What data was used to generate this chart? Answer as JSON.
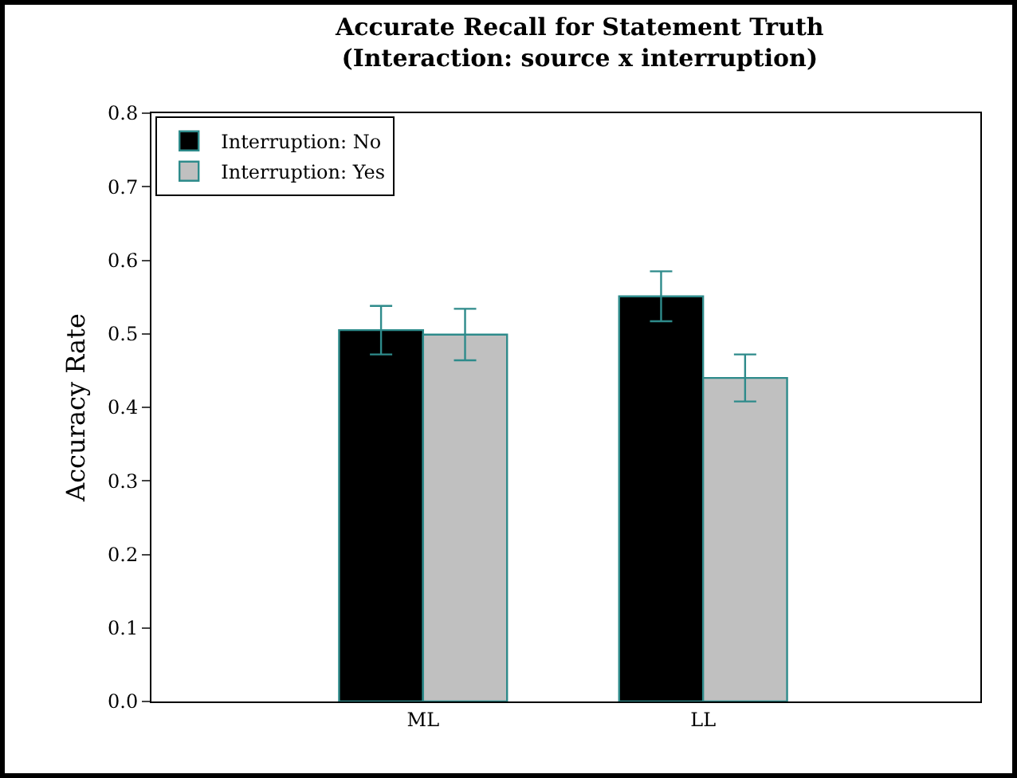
{
  "chart_data": {
    "type": "bar",
    "title": "Accurate Recall for Statement Truth\n(Interaction: source x interruption)",
    "ylabel": "Accuracy Rate",
    "categories": [
      "ML",
      "LL"
    ],
    "series": [
      {
        "name": "Interruption: No",
        "color": "#000000",
        "values": [
          0.505,
          0.551
        ],
        "errors": [
          0.033,
          0.034
        ]
      },
      {
        "name": "Interruption: Yes",
        "color": "#c0c0c0",
        "values": [
          0.499,
          0.44
        ],
        "errors": [
          0.035,
          0.032
        ]
      }
    ],
    "ylim": [
      0,
      0.8
    ],
    "yticks": [
      {
        "value": 0,
        "label": "0.0"
      },
      0.1,
      0.2,
      0.3,
      0.4,
      0.5,
      0.6,
      0.7,
      0.8
    ],
    "grid": false,
    "legend": "top left"
  }
}
